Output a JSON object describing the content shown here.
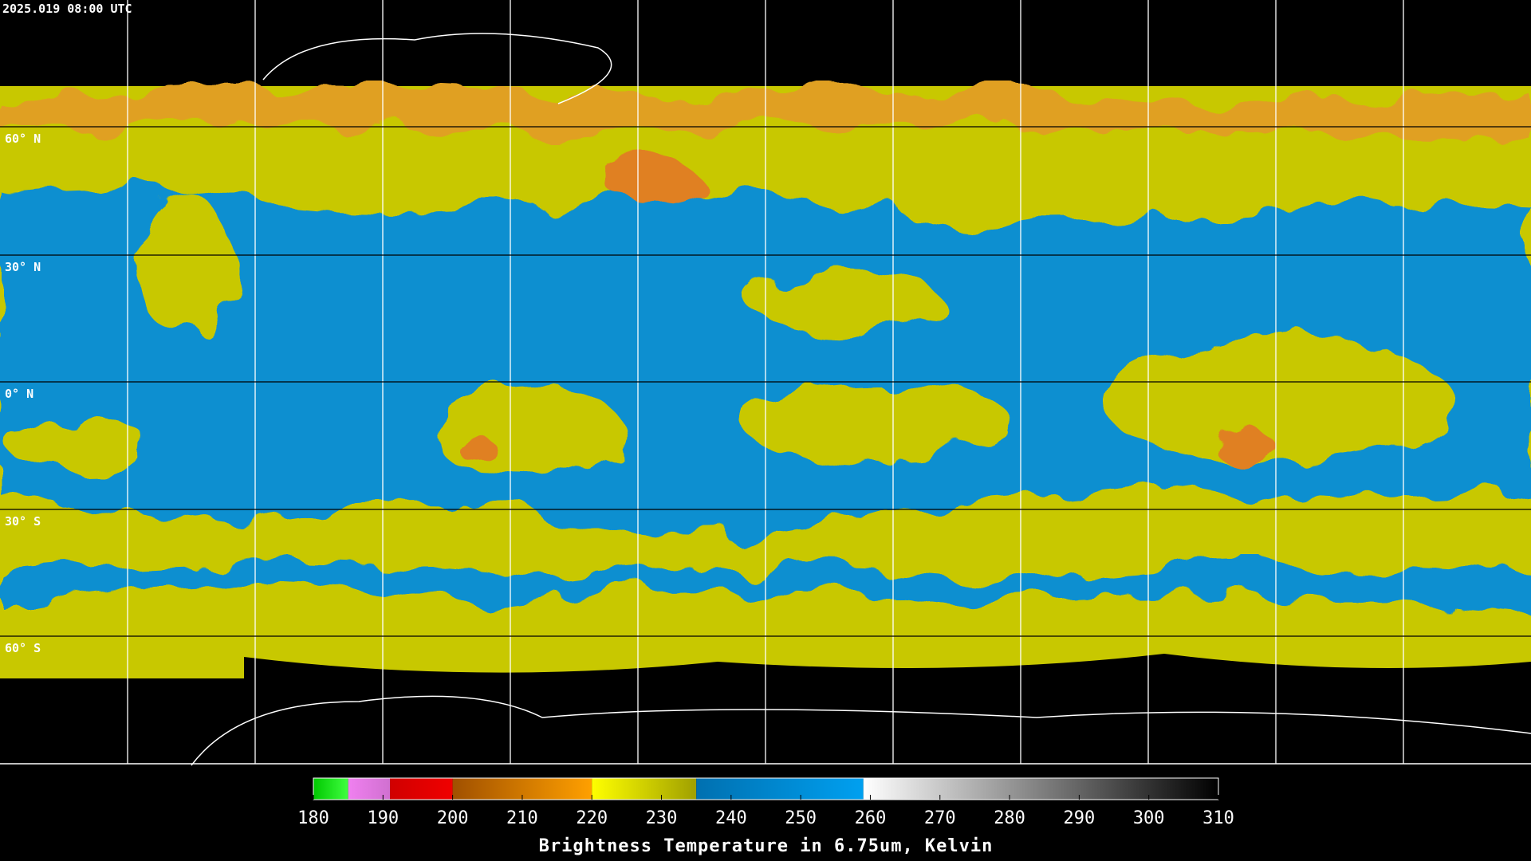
{
  "header": {
    "timestamp": "2025.019 08:00 UTC"
  },
  "grid": {
    "lat_labels": [
      "60° N",
      "30° N",
      "0° N",
      "30° S",
      "60° S"
    ]
  },
  "colorbar": {
    "title": "Brightness Temperature in 6.75um, Kelvin",
    "lim": [
      180,
      310
    ],
    "ticks": [
      180,
      190,
      200,
      210,
      220,
      230,
      240,
      250,
      260,
      270,
      280,
      290,
      300,
      310
    ],
    "segments": [
      {
        "from": 180,
        "to": 185,
        "color_start": "#00c800",
        "color_end": "#40ff40"
      },
      {
        "from": 185,
        "to": 191,
        "color_start": "#f080f0",
        "color_end": "#d070d0"
      },
      {
        "from": 191,
        "to": 200,
        "color_start": "#d00000",
        "color_end": "#f00000"
      },
      {
        "from": 200,
        "to": 220,
        "color_start": "#a05000",
        "color_end": "#ffa000"
      },
      {
        "from": 220,
        "to": 235,
        "color_start": "#ffff00",
        "color_end": "#a0a000"
      },
      {
        "from": 235,
        "to": 259,
        "color_start": "#0070b0",
        "color_end": "#00a0f0"
      },
      {
        "from": 259,
        "to": 310,
        "color_start": "#ffffff",
        "color_end": "#000000"
      }
    ]
  }
}
